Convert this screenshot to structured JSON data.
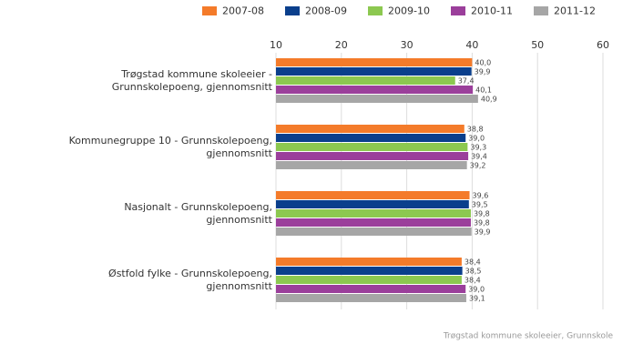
{
  "chart_data": {
    "type": "bar",
    "orientation": "horizontal",
    "categories": [
      "Trøgstad kommune skoleeier -\nGrunnskolepoeng, gjennomsnitt",
      "Kommunegruppe 10 - Grunnskolepoeng,\ngjennomsnitt",
      "Nasjonalt - Grunnskolepoeng,\ngjennomsnitt",
      "Østfold fylke - Grunnskolepoeng,\ngjennomsnitt"
    ],
    "series": [
      {
        "name": "2007-08",
        "color": "#f47b2a",
        "values": [
          40.0,
          38.8,
          39.6,
          38.4
        ],
        "value_labels": [
          "40,0",
          "38,8",
          "39,6",
          "38,4"
        ]
      },
      {
        "name": "2008-09",
        "color": "#0a3f8c",
        "values": [
          39.9,
          39.0,
          39.5,
          38.5
        ],
        "value_labels": [
          "39,9",
          "39,0",
          "39,5",
          "38,5"
        ]
      },
      {
        "name": "2009-10",
        "color": "#8cc850",
        "values": [
          37.4,
          39.3,
          39.8,
          38.4
        ],
        "value_labels": [
          "37,4",
          "39,3",
          "39,8",
          "38,4"
        ]
      },
      {
        "name": "2010-11",
        "color": "#9b3f9b",
        "values": [
          40.1,
          39.4,
          39.8,
          39.0
        ],
        "value_labels": [
          "40,1",
          "39,4",
          "39,8",
          "39,0"
        ]
      },
      {
        "name": "2011-12",
        "color": "#a6a6a6",
        "values": [
          40.9,
          39.2,
          39.9,
          39.1
        ],
        "value_labels": [
          "40,9",
          "39,2",
          "39,9",
          "39,1"
        ]
      }
    ],
    "xlim": [
      10,
      60
    ],
    "xticks": [
      10,
      20,
      30,
      40,
      50,
      60
    ],
    "grid": true,
    "legend": "top",
    "source": "Trøgstad kommune skoleeier, Grunnskole"
  }
}
